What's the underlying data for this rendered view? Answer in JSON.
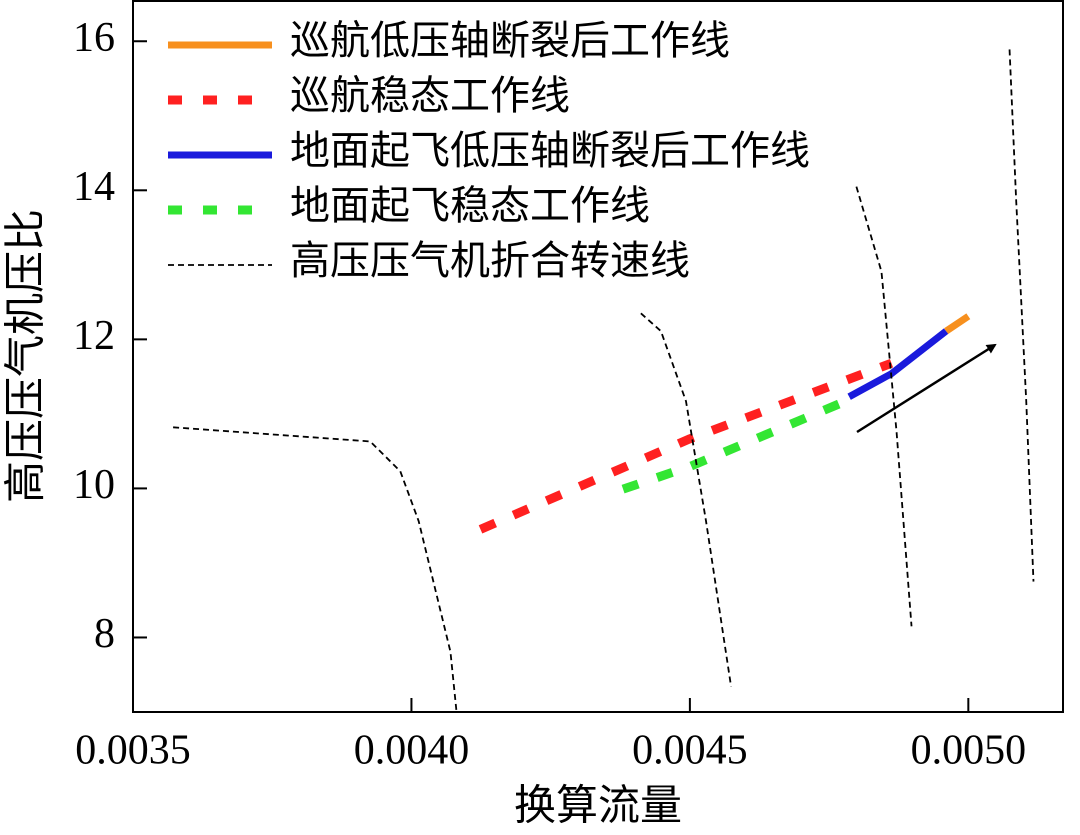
{
  "chart_data": {
    "type": "line",
    "x_label": "换算流量",
    "y_label": "高压压气机压比",
    "xlim": [
      0.0035,
      0.00517
    ],
    "ylim": [
      7,
      16.54
    ],
    "xticks": [
      0.0035,
      {
        "value": 0.004,
        "label": "0.0040"
      },
      0.0045,
      {
        "value": 0.005,
        "label": "0.0050"
      }
    ],
    "yticks": [
      8,
      10,
      12,
      14,
      16
    ],
    "legend": "upper left",
    "series": [
      {
        "name": "巡航低压轴断裂后工作线",
        "color": "#f7901e",
        "style": "solid",
        "x": [
          0.00496,
          0.005
        ],
        "values": [
          12.11,
          12.31
        ]
      },
      {
        "name": "巡航稳态工作线",
        "color": "#ff2020",
        "style": "dotted",
        "x": [
          0.004124,
          0.004498,
          0.004862
        ],
        "values": [
          9.45,
          10.66,
          11.68
        ]
      },
      {
        "name": "地面起飞低压轴断裂后工作线",
        "color": "#1a1adc",
        "style": "solid",
        "x": [
          0.004786,
          0.004862,
          0.00496
        ],
        "values": [
          11.23,
          11.54,
          12.11
        ]
      },
      {
        "name": "地面起飞稳态工作线",
        "color": "#33e633",
        "style": "dotted",
        "x": [
          0.00438,
          0.004502,
          0.004786
        ],
        "values": [
          9.99,
          10.3,
          11.19
        ]
      },
      {
        "name": "高压压气机折合转速线",
        "color": "#000000",
        "style": "dashed",
        "x": [
          0.003572,
          0.003926,
          0.00398,
          0.004013,
          0.00407,
          0.004081,
          null,
          0.004412,
          0.004448,
          0.004493,
          0.004529,
          0.004574,
          null,
          0.004799,
          0.004844,
          0.004871,
          0.004898,
          null,
          0.005074,
          0.005086,
          0.005104,
          0.005117
        ],
        "values": [
          10.82,
          10.63,
          10.23,
          9.56,
          7.81,
          7.0,
          null,
          12.35,
          12.11,
          11.17,
          9.56,
          7.34,
          null,
          14.05,
          12.91,
          10.77,
          8.15,
          null,
          15.89,
          13.85,
          11.17,
          8.75
        ]
      }
    ]
  }
}
